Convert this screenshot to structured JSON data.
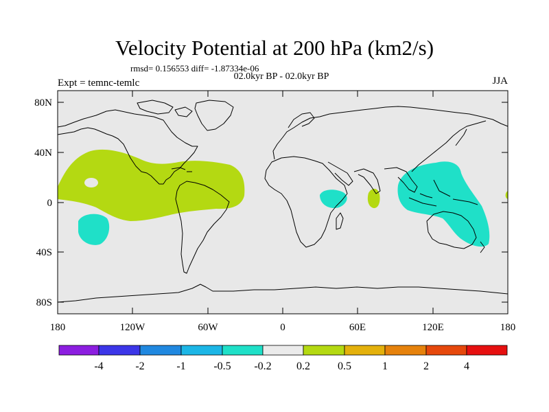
{
  "header": {
    "title": "Velocity Potential at 200 hPa (km2/s)",
    "stats": "rmsd= 0.156553 diff= -1.87334e-06",
    "period": "02.0kyr BP - 02.0kyr BP",
    "experiment": "Expt = temnc-temlc",
    "season": "JJA"
  },
  "axes": {
    "y_ticks": [
      "80N",
      "40N",
      "0",
      "40S",
      "80S"
    ],
    "x_ticks": [
      "180",
      "120W",
      "60W",
      "0",
      "60E",
      "120E",
      "180"
    ]
  },
  "colorbar": {
    "colors": [
      "#8c1ee0",
      "#3c36e8",
      "#2088e0",
      "#1cb6e6",
      "#1fe0c8",
      "#ebebeb",
      "#b4d912",
      "#e4b10c",
      "#e6820c",
      "#e6480c",
      "#e61010"
    ],
    "labels": [
      "-4",
      "-2",
      "-1",
      "-0.5",
      "-0.2",
      "0.2",
      "0.5",
      "1",
      "2",
      "4"
    ]
  },
  "map_colors": {
    "background": "#e8e8e8",
    "positive_anomaly": "#b4d912",
    "negative_anomaly": "#1fe0c8",
    "coastline": "#000000"
  }
}
